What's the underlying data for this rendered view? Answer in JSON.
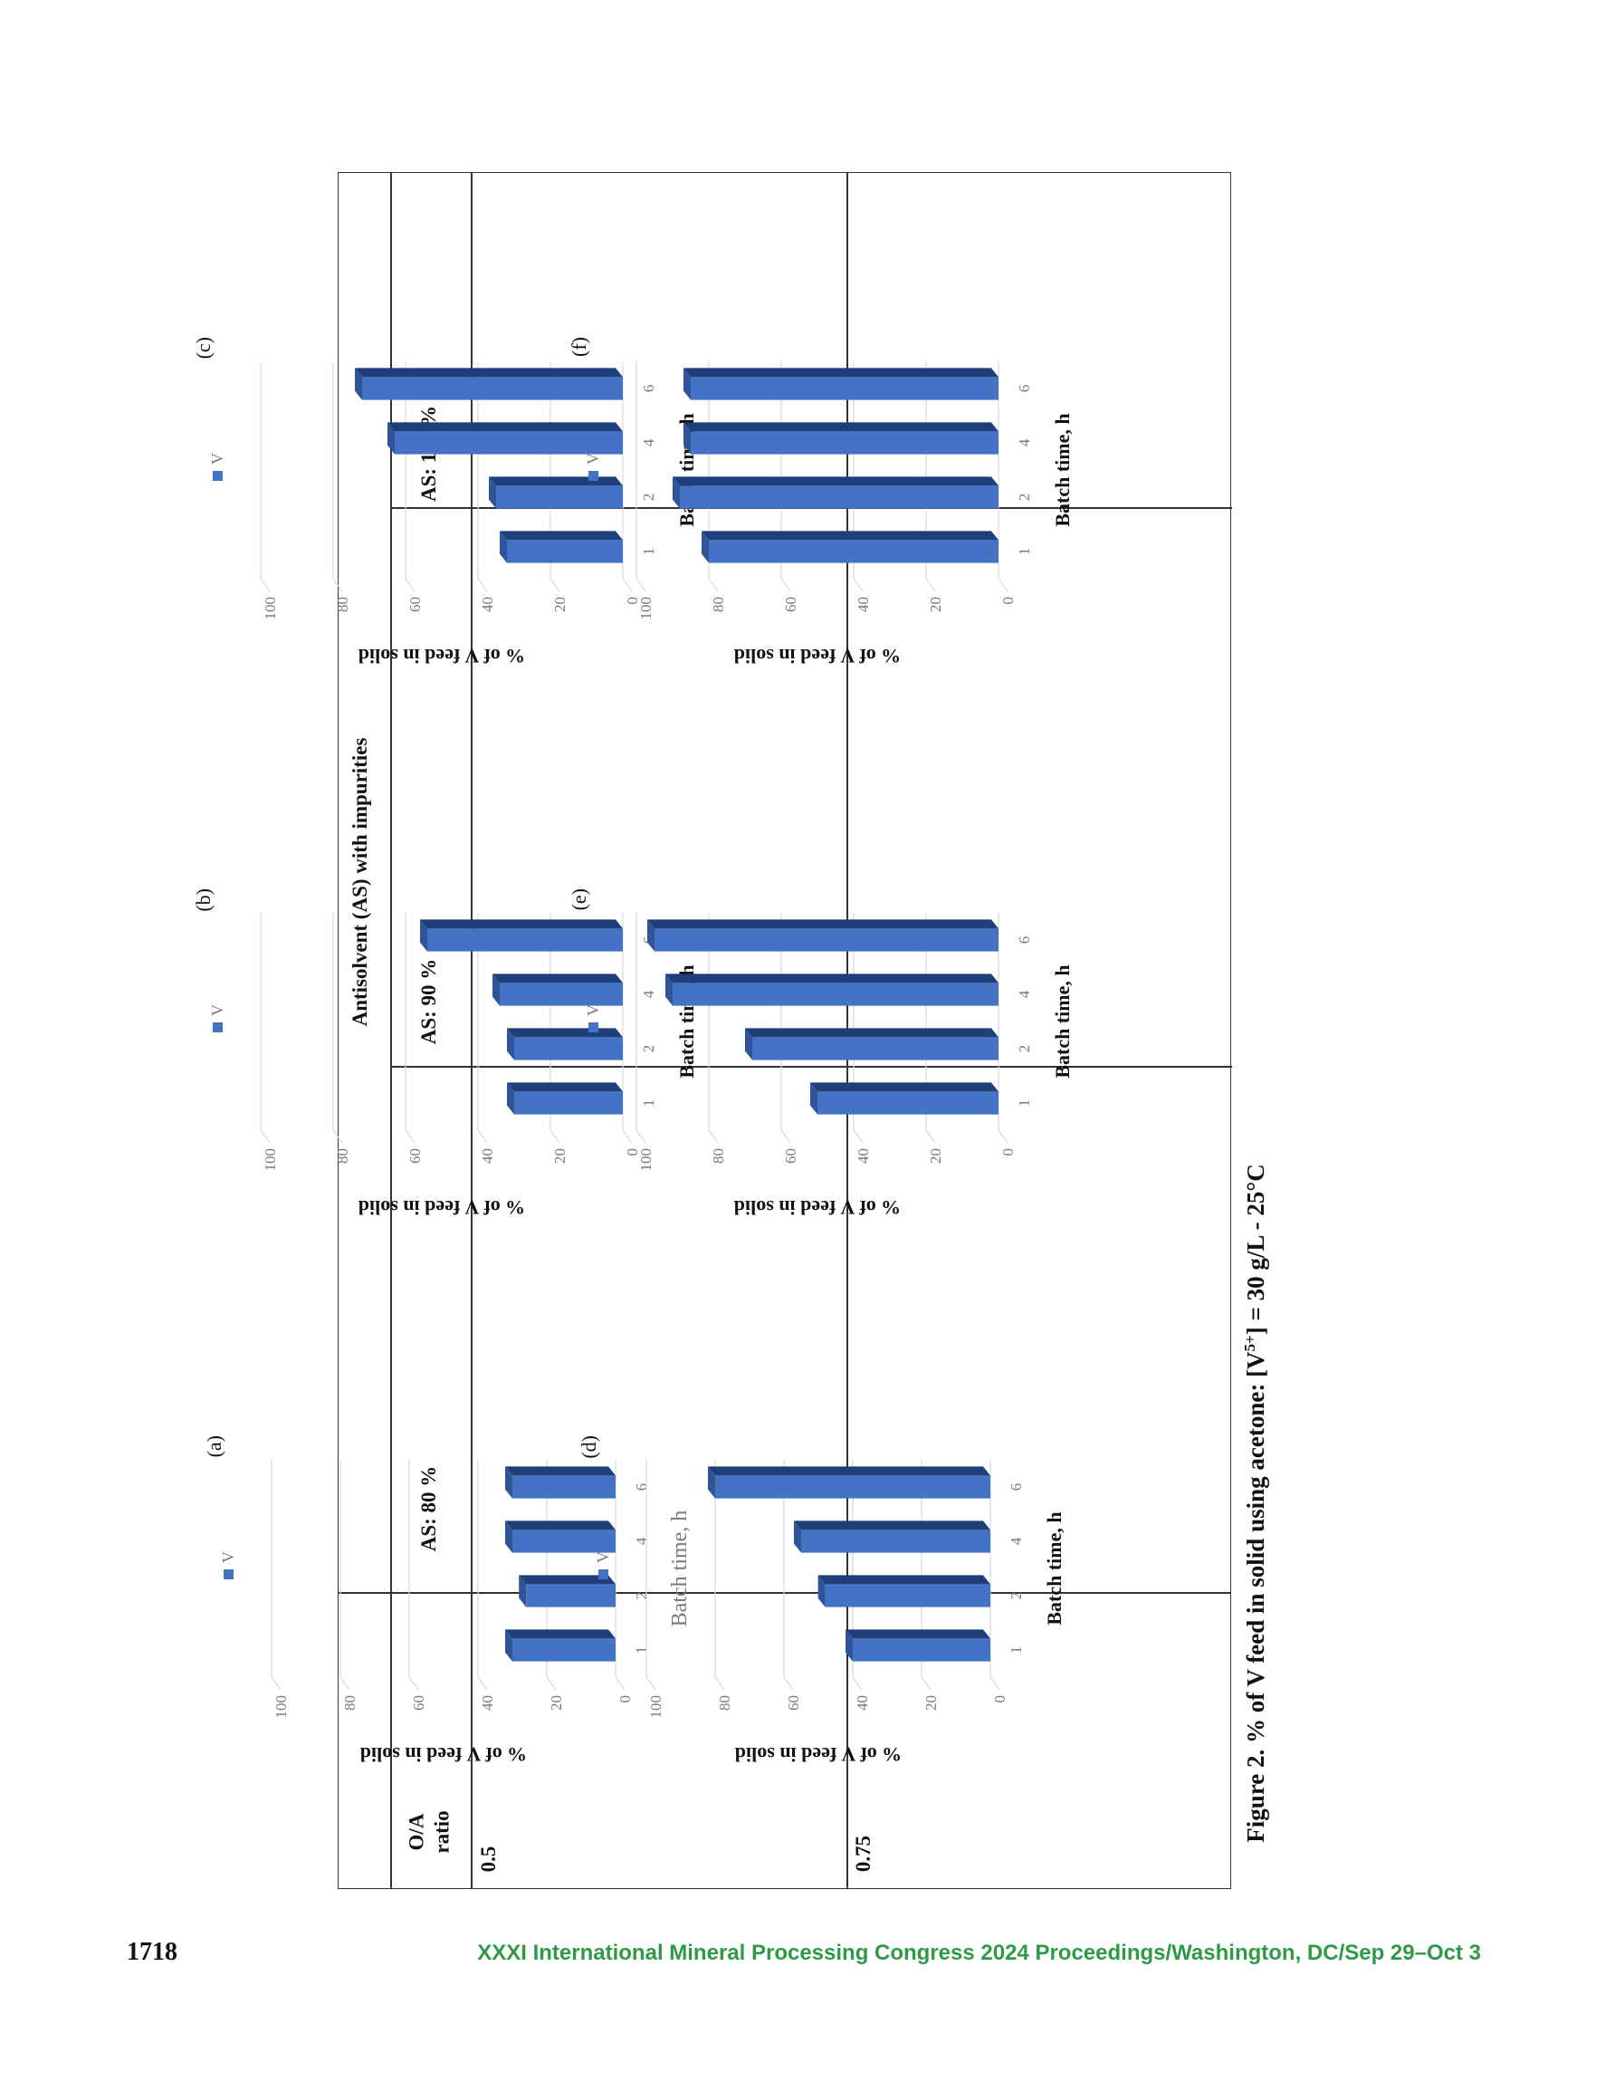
{
  "table": {
    "header_main": "Antisolvent (AS) with impurities",
    "col_labels": [
      "O/A ratio",
      "AS: 80 %",
      "AS: 90 %",
      "AS: 100 %"
    ],
    "row_labels": [
      "0.5",
      "0.75"
    ]
  },
  "caption": {
    "prefix": "Figure 2. % of V feed in solid using acetone: [V",
    "superscript": "5+",
    "suffix": "] = 30 g/L - 25°C"
  },
  "footer": {
    "page_number": "1718",
    "proceedings": "XXXI International Mineral Processing Congress 2024 Proceedings/Washington, DC/Sep 29–Oct 3"
  },
  "colors": {
    "bar_front": "#4472c4",
    "bar_top": "#2f5597",
    "bar_side": "#1f3f7a",
    "footer": "#2e9a47"
  },
  "chart_data": [
    {
      "panel": "(a)",
      "type": "bar",
      "categories": [
        "1",
        "2",
        "4",
        "6"
      ],
      "series": [
        {
          "name": "V",
          "values": [
            30,
            26,
            30,
            30
          ]
        }
      ],
      "xlabel": "Batch time, h",
      "ylabel": "% of V feed in solid",
      "ylim": [
        0,
        100
      ],
      "yticks": [
        "0",
        "20",
        "40",
        "60",
        "80",
        "100"
      ],
      "xlabel_bold": false
    },
    {
      "panel": "(b)",
      "type": "bar",
      "categories": [
        "1",
        "2",
        "4",
        "6"
      ],
      "series": [
        {
          "name": "V",
          "values": [
            30,
            30,
            34,
            54
          ]
        }
      ],
      "xlabel": "Batch time, h",
      "ylabel": "% of V feed in solid",
      "ylim": [
        0,
        100
      ],
      "yticks": [
        "0",
        "20",
        "40",
        "60",
        "80",
        "100"
      ],
      "xlabel_bold": true
    },
    {
      "panel": "(c)",
      "type": "bar",
      "categories": [
        "1",
        "2",
        "4",
        "6"
      ],
      "series": [
        {
          "name": "V",
          "values": [
            32,
            35,
            63,
            72
          ]
        }
      ],
      "xlabel": "Batch time, h",
      "ylabel": "% of V feed in solid",
      "ylim": [
        0,
        100
      ],
      "yticks": [
        "0",
        "20",
        "40",
        "60",
        "80",
        "100"
      ],
      "xlabel_bold": true
    },
    {
      "panel": "(d)",
      "type": "bar",
      "categories": [
        "1",
        "2",
        "4",
        "6"
      ],
      "series": [
        {
          "name": "V",
          "values": [
            40,
            48,
            55,
            80
          ]
        }
      ],
      "xlabel": "Batch time, h",
      "ylabel": "% of V feed in solid",
      "ylim": [
        0,
        100
      ],
      "yticks": [
        "0",
        "20",
        "40",
        "60",
        "80",
        "100"
      ],
      "xlabel_bold": true
    },
    {
      "panel": "(e)",
      "type": "bar",
      "categories": [
        "1",
        "2",
        "4",
        "6"
      ],
      "series": [
        {
          "name": "V",
          "values": [
            50,
            68,
            90,
            95
          ]
        }
      ],
      "xlabel": "Batch time, h",
      "ylabel": "% of V feed in solid",
      "ylim": [
        0,
        100
      ],
      "yticks": [
        "0",
        "20",
        "40",
        "60",
        "80",
        "100"
      ],
      "xlabel_bold": true
    },
    {
      "panel": "(f)",
      "type": "bar",
      "categories": [
        "1",
        "2",
        "4",
        "6"
      ],
      "series": [
        {
          "name": "V",
          "values": [
            80,
            88,
            85,
            85
          ]
        }
      ],
      "xlabel": "Batch time, h",
      "ylabel": "% of V feed in solid",
      "ylim": [
        0,
        100
      ],
      "yticks": [
        "0",
        "20",
        "40",
        "60",
        "80",
        "100"
      ],
      "xlabel_bold": true
    }
  ]
}
